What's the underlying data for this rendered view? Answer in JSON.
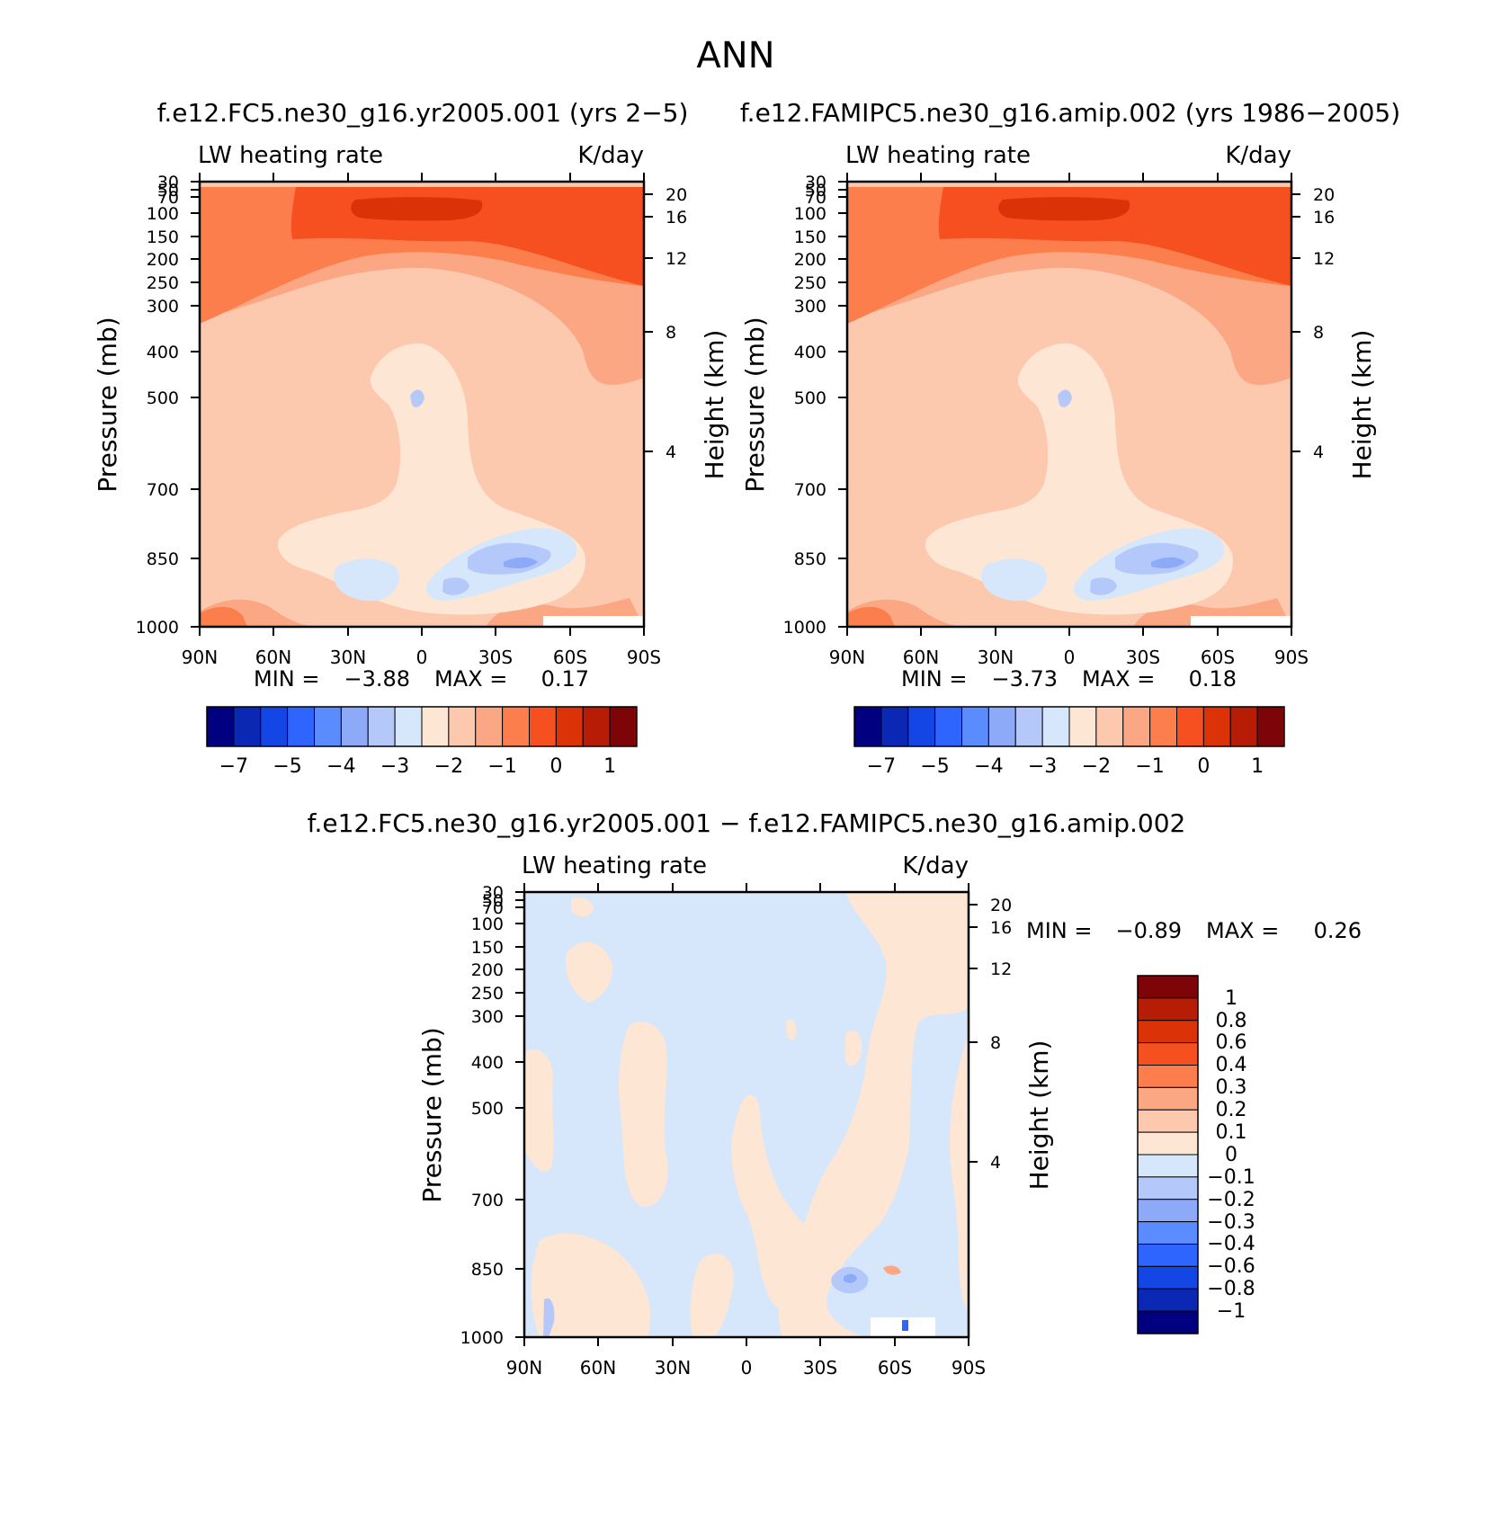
{
  "figure": {
    "title": "ANN"
  },
  "chart_data": [
    {
      "type": "heatmap",
      "title": "f.e12.FC5.ne30_g16.yr2005.001 (yrs 2-5)",
      "variable": "LW heating rate",
      "units": "K/day",
      "ylabel": "Pressure (mb)",
      "ylabel_right": "Height (km)",
      "x_ticks": [
        "90N",
        "60N",
        "30N",
        "0",
        "30S",
        "60S",
        "90S"
      ],
      "y_ticks": [
        30,
        50,
        70,
        100,
        150,
        200,
        250,
        300,
        400,
        500,
        700,
        850,
        1000
      ],
      "height_ticks": [
        20,
        16,
        12,
        8,
        4
      ],
      "min_label": "MIN =",
      "min_value": "-3.88",
      "max_label": "MAX =",
      "max_value": "0.17",
      "colorbar_labels": [
        "-7",
        "-5",
        "-4",
        "-3",
        "-2",
        "-1",
        "0",
        "1"
      ],
      "colorbar_colors": [
        "#000080",
        "#0a28b4",
        "#1446e6",
        "#2e64ff",
        "#5a8cff",
        "#8caaf8",
        "#b4c8fa",
        "#d7e7fb",
        "#fde6d4",
        "#fcc9ae",
        "#fca784",
        "#fc7e4c",
        "#f64f20",
        "#dc3208",
        "#b71c07",
        "#7d0508"
      ]
    },
    {
      "type": "heatmap",
      "title": "f.e12.FAMIPC5.ne30_g16.amip.002 (yrs 1986-2005)",
      "variable": "LW heating rate",
      "units": "K/day",
      "ylabel": "Pressure (mb)",
      "ylabel_right": "Height (km)",
      "x_ticks": [
        "90N",
        "60N",
        "30N",
        "0",
        "30S",
        "60S",
        "90S"
      ],
      "y_ticks": [
        30,
        50,
        70,
        100,
        150,
        200,
        250,
        300,
        400,
        500,
        700,
        850,
        1000
      ],
      "height_ticks": [
        20,
        16,
        12,
        8,
        4
      ],
      "min_label": "MIN =",
      "min_value": "-3.73",
      "max_label": "MAX =",
      "max_value": "0.18",
      "colorbar_labels": [
        "-7",
        "-5",
        "-4",
        "-3",
        "-2",
        "-1",
        "0",
        "1"
      ],
      "colorbar_colors": [
        "#000080",
        "#0a28b4",
        "#1446e6",
        "#2e64ff",
        "#5a8cff",
        "#8caaf8",
        "#b4c8fa",
        "#d7e7fb",
        "#fde6d4",
        "#fcc9ae",
        "#fca784",
        "#fc7e4c",
        "#f64f20",
        "#dc3208",
        "#b71c07",
        "#7d0508"
      ]
    },
    {
      "type": "heatmap",
      "title": "f.e12.FC5.ne30_g16.yr2005.001 - f.e12.FAMIPC5.ne30_g16.amip.002",
      "variable": "LW heating rate",
      "units": "K/day",
      "ylabel": "Pressure (mb)",
      "ylabel_right": "Height (km)",
      "x_ticks": [
        "90N",
        "60N",
        "30N",
        "0",
        "30S",
        "60S",
        "90S"
      ],
      "y_ticks": [
        30,
        50,
        70,
        100,
        150,
        200,
        250,
        300,
        400,
        500,
        700,
        850,
        1000
      ],
      "height_ticks": [
        20,
        16,
        12,
        8,
        4
      ],
      "min_label": "MIN =",
      "min_value": "-0.89",
      "max_label": "MAX =",
      "max_value": "0.26",
      "colorbar_labels": [
        "1",
        "0.8",
        "0.6",
        "0.4",
        "0.3",
        "0.2",
        "0.1",
        "0",
        "-0.1",
        "-0.2",
        "-0.3",
        "-0.4",
        "-0.6",
        "-0.8",
        "-1"
      ],
      "colorbar_colors": [
        "#7d0508",
        "#b71c07",
        "#dc3208",
        "#f64f20",
        "#fc7e4c",
        "#fca784",
        "#fcc9ae",
        "#fde6d4",
        "#d7e7fb",
        "#b4c8fa",
        "#8caaf8",
        "#5a8cff",
        "#2e64ff",
        "#1446e6",
        "#0a28b4",
        "#000080"
      ]
    }
  ]
}
